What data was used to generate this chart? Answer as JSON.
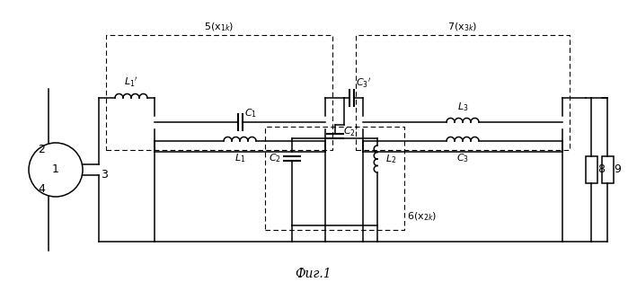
{
  "title": "Фиг.1",
  "background_color": "#ffffff",
  "line_color": "#000000",
  "figsize": [
    6.99,
    3.24
  ],
  "dpi": 100
}
